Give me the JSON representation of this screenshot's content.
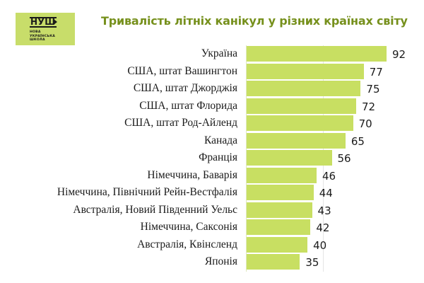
{
  "logo": {
    "mark": "НУШ",
    "lines": [
      "НОВА",
      "УКРАЇНСЬКА",
      "ШКОЛА"
    ]
  },
  "title": "Тривалість літніх канікул у різних країнах світу",
  "colors": {
    "bar": "#c8df62",
    "title": "#76901c",
    "logo_bg": "#c8dd6a",
    "text": "#1a1a1a"
  },
  "chart_data": {
    "type": "bar",
    "orientation": "horizontal",
    "title": "Тривалість літніх канікул у різних країнах світу",
    "xlabel": "",
    "ylabel": "",
    "categories": [
      "Україна",
      "США, штат Вашингтон",
      "США, штат Джорджія",
      "США, штат Флорида",
      "США, штат Род-Айленд",
      "Канада",
      "Франція",
      "Німеччина, Баварія",
      "Німеччина, Північний Рейн-Вестфалія",
      "Австралія, Новий Південний Уельс",
      "Німеччина, Саксонія",
      "Австралія, Квінсленд",
      "Японія"
    ],
    "values": [
      92,
      77,
      75,
      72,
      70,
      65,
      56,
      46,
      44,
      43,
      42,
      40,
      35
    ],
    "data_labels": [
      "92",
      "77",
      "75",
      "72",
      "70",
      "65",
      "56",
      "46",
      "44",
      "43",
      "42",
      "40",
      "35"
    ],
    "xlim": [
      0,
      92
    ],
    "grid": false,
    "legend": null
  }
}
